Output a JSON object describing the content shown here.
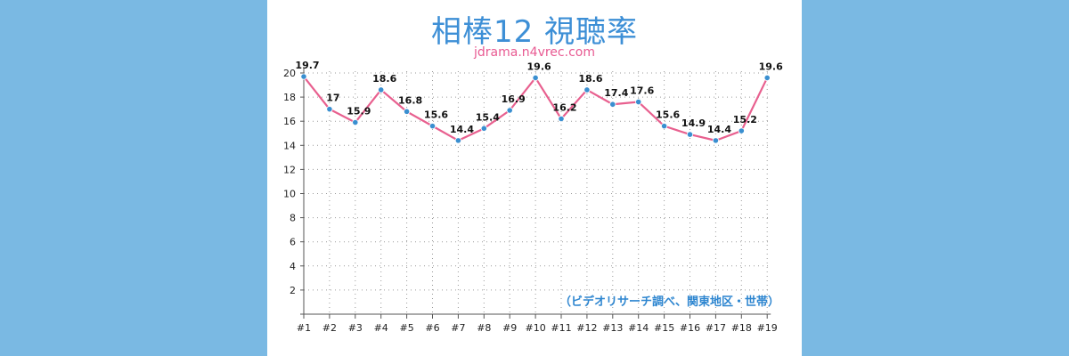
{
  "header": {
    "title": "相棒12 視聴率",
    "subtitle": "jdrama.n4vrec.com"
  },
  "colors": {
    "background": "#7ab9e3",
    "title": "#3d8fd6",
    "subtitle": "#e85a92",
    "line": "#e8608f",
    "point": "#3a8fd0",
    "note": "#2e86d0"
  },
  "chart_data": {
    "type": "line",
    "title": "相棒12 視聴率",
    "categories": [
      "#1",
      "#2",
      "#3",
      "#4",
      "#5",
      "#6",
      "#7",
      "#8",
      "#9",
      "#10",
      "#11",
      "#12",
      "#13",
      "#14",
      "#15",
      "#16",
      "#17",
      "#18",
      "#19"
    ],
    "values": [
      19.7,
      17,
      15.9,
      18.6,
      16.8,
      15.6,
      14.4,
      15.4,
      16.9,
      19.6,
      16.2,
      18.6,
      17.4,
      17.6,
      15.6,
      14.9,
      14.4,
      15.2,
      19.6
    ],
    "value_labels": [
      "19.7",
      "17",
      "15.9",
      "18.6",
      "16.8",
      "15.6",
      "14.4",
      "15.4",
      "16.9",
      "19.6",
      "16.2",
      "18.6",
      "17.4",
      "17.6",
      "15.6",
      "14.9",
      "14.4",
      "15.2",
      "19.6"
    ],
    "y_ticks": [
      "2",
      "4",
      "6",
      "8",
      "10",
      "12",
      "14",
      "16",
      "18",
      "20"
    ],
    "ylim": [
      0,
      20
    ],
    "grid": "dotted",
    "note": "（ビデオリサーチ調べ、関東地区・世帯）"
  }
}
